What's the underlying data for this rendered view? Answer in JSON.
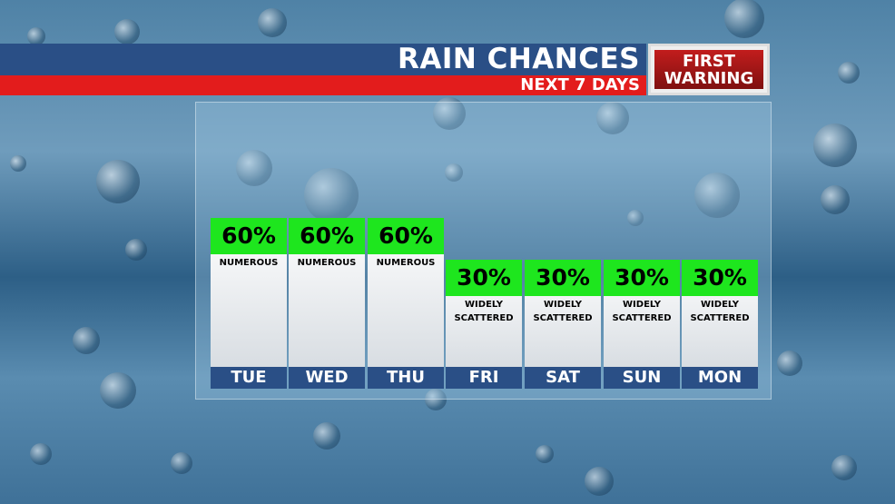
{
  "header": {
    "title": "RAIN CHANCES",
    "subtitle": "NEXT 7 DAYS"
  },
  "badge": {
    "line1": "FIRST",
    "line2": "WARNING"
  },
  "days": [
    {
      "day": "TUE",
      "chance": "60%",
      "description": "NUMEROUS"
    },
    {
      "day": "WED",
      "chance": "60%",
      "description": "NUMEROUS"
    },
    {
      "day": "THU",
      "chance": "60%",
      "description": "NUMEROUS"
    },
    {
      "day": "FRI",
      "chance": "30%",
      "description": "WIDELY SCATTERED"
    },
    {
      "day": "SAT",
      "chance": "30%",
      "description": "WIDELY SCATTERED"
    },
    {
      "day": "SUN",
      "chance": "30%",
      "description": "WIDELY SCATTERED"
    },
    {
      "day": "MON",
      "chance": "30%",
      "description": "WIDELY SCATTERED"
    }
  ]
}
